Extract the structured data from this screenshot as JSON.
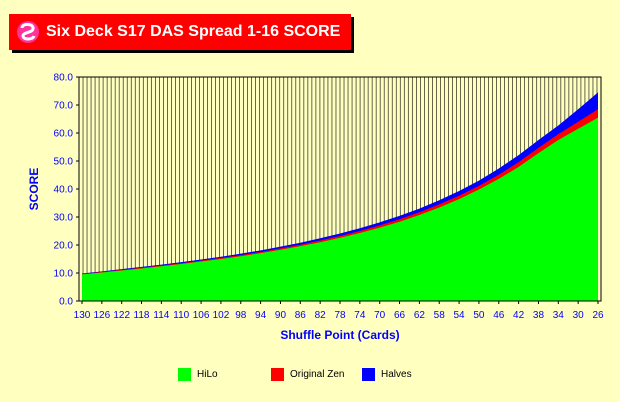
{
  "title": "Six Deck S17 DAS Spread 1-16 SCORE",
  "chart_data": {
    "type": "area",
    "ylabel": "SCORE",
    "xlabel": "Shuffle Point (Cards)",
    "ylim": [
      0,
      80
    ],
    "yticks": [
      "0.0",
      "10.0",
      "20.0",
      "30.0",
      "40.0",
      "50.0",
      "60.0",
      "70.0",
      "80.0"
    ],
    "x": [
      130,
      126,
      122,
      118,
      114,
      110,
      106,
      102,
      98,
      94,
      90,
      86,
      82,
      78,
      74,
      70,
      66,
      62,
      58,
      54,
      50,
      46,
      42,
      38,
      34,
      30,
      26
    ],
    "grid": true,
    "series": [
      {
        "name": "HiLo",
        "color": "#00FF00",
        "values": [
          9.5,
          10.2,
          10.9,
          11.6,
          12.4,
          13.2,
          14.1,
          15.0,
          16.0,
          17.1,
          18.3,
          19.6,
          21.0,
          22.6,
          24.3,
          26.2,
          28.3,
          30.7,
          33.4,
          36.4,
          39.8,
          43.6,
          47.9,
          52.8,
          57.5,
          61.5,
          65.5
        ]
      },
      {
        "name": "Original Zen",
        "color": "#FF0000",
        "values": [
          9.6,
          10.4,
          11.1,
          11.9,
          12.7,
          13.5,
          14.4,
          15.4,
          16.4,
          17.5,
          18.8,
          20.1,
          21.6,
          23.2,
          25.0,
          27.0,
          29.2,
          31.7,
          34.5,
          37.6,
          41.1,
          45.1,
          49.6,
          54.7,
          59.6,
          64.0,
          68.5
        ]
      },
      {
        "name": "Halves",
        "color": "#0000FF",
        "values": [
          9.8,
          10.6,
          11.4,
          12.2,
          13.0,
          13.9,
          14.8,
          15.8,
          16.9,
          18.1,
          19.4,
          20.8,
          22.4,
          24.1,
          26.0,
          28.1,
          30.4,
          33.0,
          36.0,
          39.3,
          43.0,
          47.3,
          52.1,
          57.5,
          62.7,
          68.5,
          74.5
        ]
      }
    ],
    "legend_position": "bottom"
  }
}
